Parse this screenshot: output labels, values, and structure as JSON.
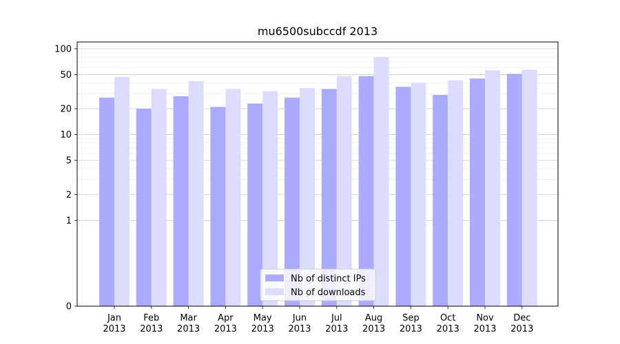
{
  "chart_data": {
    "type": "bar",
    "title": "mu6500subccdf 2013",
    "xlabel": "",
    "ylabel": "",
    "y_scale": "symlog",
    "ylim": [
      0,
      120
    ],
    "y_ticks": [
      0,
      1,
      2,
      5,
      10,
      20,
      50,
      100
    ],
    "y_tick_labels": [
      "0",
      "1",
      "2",
      "5",
      "10",
      "20",
      "50",
      "100"
    ],
    "grid": "horizontal",
    "legend_position": "bottom-center",
    "categories": [
      "Jan\n2013",
      "Feb\n2013",
      "Mar\n2013",
      "Apr\n2013",
      "May\n2013",
      "Jun\n2013",
      "Jul\n2013",
      "Aug\n2013",
      "Sep\n2013",
      "Oct\n2013",
      "Nov\n2013",
      "Dec\n2013"
    ],
    "series": [
      {
        "name": "Nb of distinct IPs",
        "color": "#aaaaff",
        "values": [
          27,
          20,
          28,
          21,
          23,
          27,
          34,
          48,
          36,
          29,
          45,
          51
        ]
      },
      {
        "name": "Nb of downloads",
        "color": "#dcdcff",
        "values": [
          47,
          34,
          42,
          34,
          32,
          35,
          48,
          80,
          40,
          43,
          56,
          57
        ]
      }
    ]
  }
}
